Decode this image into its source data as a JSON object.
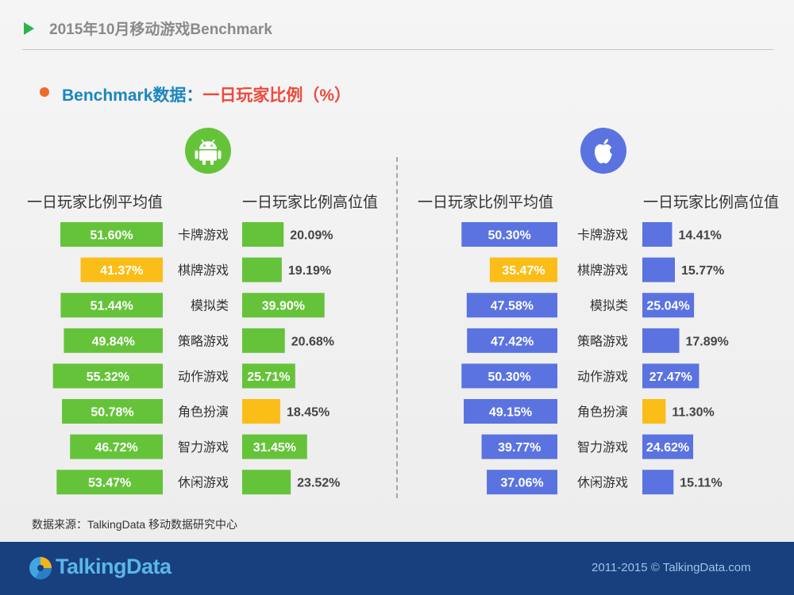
{
  "header": {
    "title": "2015年10月移动游戏Benchmark"
  },
  "subtitle": {
    "prefix": "Benchmark数据：",
    "main": "一日玩家比例（%）"
  },
  "platforms": {
    "android": {
      "icon": "android-icon",
      "color": "#65c33a"
    },
    "ios": {
      "icon": "apple-icon",
      "color": "#5a73e0"
    }
  },
  "columns": {
    "avg_label": "一日玩家比例平均值",
    "high_label": "一日玩家比例高位值"
  },
  "chart_data": [
    {
      "type": "bar",
      "platform": "android",
      "categories": [
        "卡牌游戏",
        "棋牌游戏",
        "模拟类",
        "策略游戏",
        "动作游戏",
        "角色扮演",
        "智力游戏",
        "休闲游戏"
      ],
      "series": [
        {
          "name": "一日玩家比例平均值",
          "values": [
            51.6,
            41.37,
            51.44,
            49.84,
            55.32,
            50.78,
            46.72,
            53.47
          ],
          "highlight_index": 1
        },
        {
          "name": "一日玩家比例高位值",
          "values": [
            20.09,
            19.19,
            39.9,
            20.68,
            25.71,
            18.45,
            31.45,
            23.52
          ],
          "highlight_index": 5
        }
      ],
      "bar_color": "#65c33a",
      "highlight_color": "#fbbd18"
    },
    {
      "type": "bar",
      "platform": "ios",
      "categories": [
        "卡牌游戏",
        "棋牌游戏",
        "模拟类",
        "策略游戏",
        "动作游戏",
        "角色扮演",
        "智力游戏",
        "休闲游戏"
      ],
      "series": [
        {
          "name": "一日玩家比例平均值",
          "values": [
            50.3,
            35.47,
            47.58,
            47.42,
            50.3,
            49.15,
            39.77,
            37.06
          ],
          "highlight_index": 1
        },
        {
          "name": "一日玩家比例高位值",
          "values": [
            14.41,
            15.77,
            25.04,
            17.89,
            27.47,
            11.3,
            24.62,
            15.11
          ],
          "highlight_index": 5
        }
      ],
      "bar_color": "#5a73e0",
      "highlight_color": "#fbbd18"
    }
  ],
  "footer": {
    "source": "数据来源：TalkingData 移动数据研究中心",
    "logo": "TalkingData",
    "copyright": "2011-2015 © TalkingData.com"
  }
}
